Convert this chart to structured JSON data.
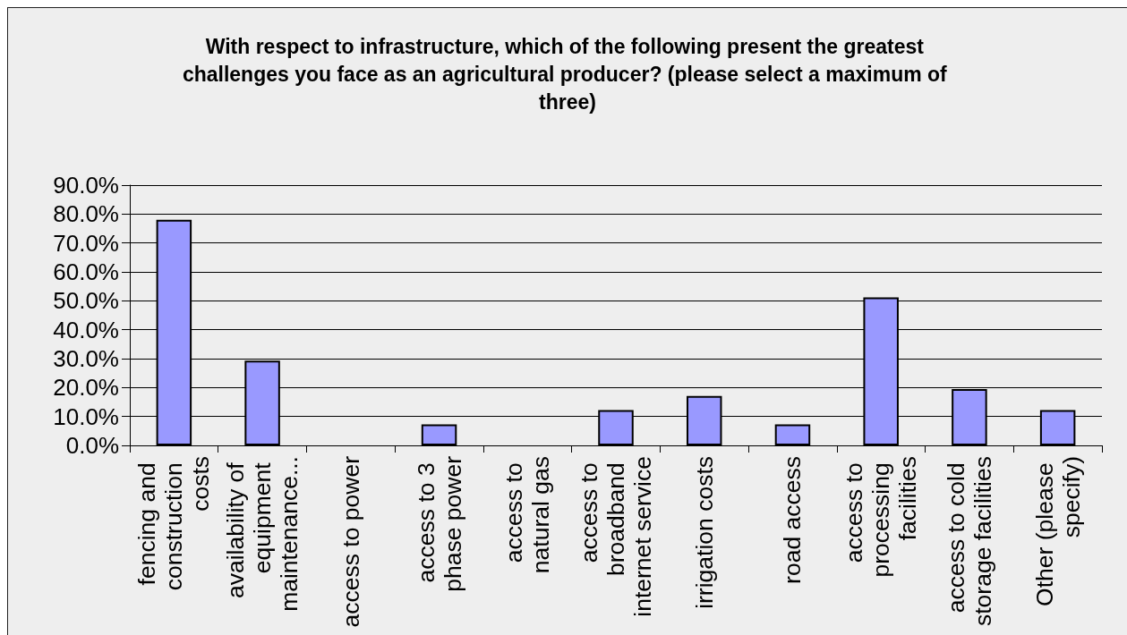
{
  "chart_data": {
    "type": "bar",
    "title": "With respect to infrastructure, which of the following present the greatest challenges you face as an agricultural producer? (please select a maximum of three)",
    "categories": [
      "fencing and construction costs",
      "availability of equipment maintenance...",
      "access to power",
      "access to 3 phase power",
      "access to natural gas",
      "access to broadband internet service",
      "irrigation costs",
      "road access",
      "access to processing facilities",
      "access to cold storage facilities",
      "Other (please specify)"
    ],
    "values": [
      78.0,
      29.3,
      0,
      7.3,
      0,
      12.2,
      17.1,
      7.3,
      51.2,
      19.5,
      12.2
    ],
    "color": "#9999ff",
    "ylim": [
      0,
      90
    ],
    "yticks": [
      {
        "value": 0,
        "label": "0.0%"
      },
      {
        "value": 10,
        "label": "10.0%"
      },
      {
        "value": 20,
        "label": "20.0%"
      },
      {
        "value": 30,
        "label": "30.0%"
      },
      {
        "value": 40,
        "label": "40.0%"
      },
      {
        "value": 50,
        "label": "50.0%"
      },
      {
        "value": 60,
        "label": "60.0%"
      },
      {
        "value": 70,
        "label": "70.0%"
      },
      {
        "value": 80,
        "label": "80.0%"
      },
      {
        "value": 90,
        "label": "90.0%"
      }
    ],
    "grid": "y"
  }
}
